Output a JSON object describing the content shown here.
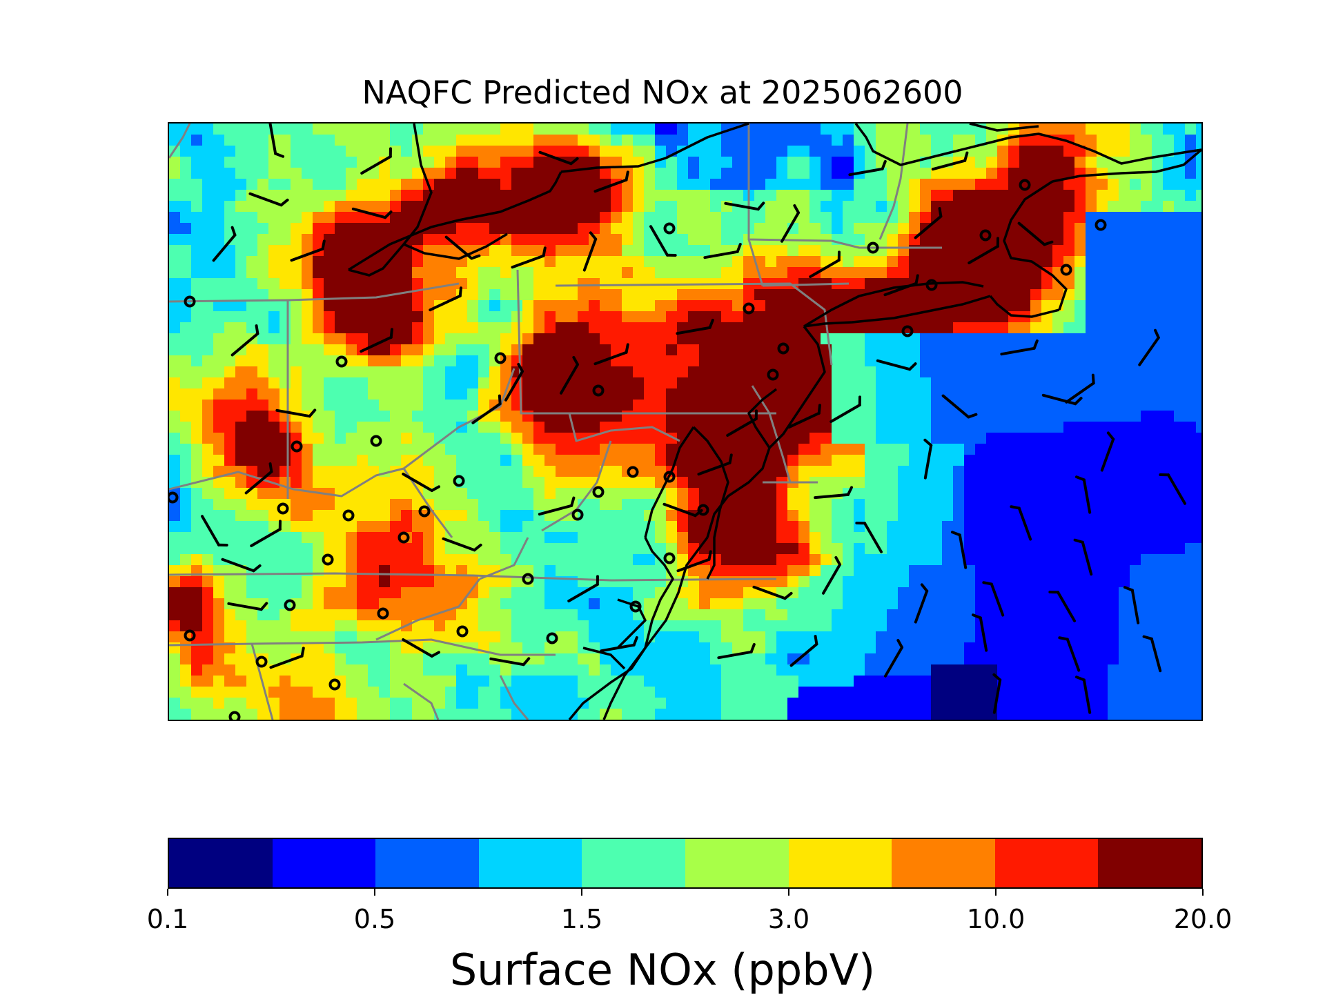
{
  "title": "NAQFC Predicted NOx at 2025062600",
  "colorbar": {
    "label": "Surface NOx (ppbV)",
    "tick_labels": [
      "0.1",
      "0.5",
      "1.5",
      "3.0",
      "10.0",
      "20.0"
    ],
    "tick_bin_index": [
      0,
      2,
      4,
      6,
      8,
      10
    ],
    "colors": [
      "#000080",
      "#0000ff",
      "#0060ff",
      "#00d4ff",
      "#4dffb0",
      "#a8ff48",
      "#ffe600",
      "#ff8000",
      "#ff1a00",
      "#800000"
    ]
  },
  "map": {
    "projection": "Lambert Conformal",
    "region": "Mid-Atlantic / Northeast United States",
    "layers": [
      "NOx concentration grid",
      "coastlines",
      "state borders",
      "wind barbs",
      "monitor stations"
    ],
    "state_border_color": "#808080",
    "coastline_color": "#000000"
  }
}
